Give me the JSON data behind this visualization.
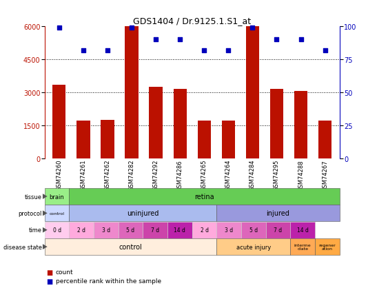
{
  "title": "GDS1404 / Dr.9125.1.S1_at",
  "samples": [
    "GSM74260",
    "GSM74261",
    "GSM74262",
    "GSM74282",
    "GSM74292",
    "GSM74286",
    "GSM74265",
    "GSM74264",
    "GSM74284",
    "GSM74295",
    "GSM74288",
    "GSM74267"
  ],
  "counts": [
    3350,
    1700,
    1750,
    6000,
    3250,
    3150,
    1700,
    1700,
    6000,
    3150,
    3050,
    1700
  ],
  "percentiles": [
    99,
    82,
    82,
    99,
    90,
    90,
    82,
    82,
    99,
    90,
    90,
    82
  ],
  "ylim_left": [
    0,
    6000
  ],
  "ylim_right": [
    0,
    100
  ],
  "yticks_left": [
    0,
    1500,
    3000,
    4500,
    6000
  ],
  "yticks_right": [
    0,
    25,
    50,
    75,
    100
  ],
  "bar_color": "#bb1100",
  "dot_color": "#0000bb",
  "bar_width": 0.55,
  "tissue_brain_color": "#99ee88",
  "tissue_retina_color": "#66cc55",
  "protocol_control_color": "#ccd9ff",
  "protocol_uninjured_color": "#aabbee",
  "protocol_injured_color": "#9999dd",
  "time_colors_all": [
    "#ffccee",
    "#ffaadd",
    "#ee88cc",
    "#dd66bb",
    "#cc44aa",
    "#bb22aa",
    "#ffaadd",
    "#ee88cc",
    "#dd66bb",
    "#cc44aa",
    "#bb22aa"
  ],
  "disease_control_color": "#ffeedd",
  "disease_acute_color": "#ffcc88",
  "disease_interme_color": "#ffaa55",
  "disease_regen_color": "#ffaa44",
  "times": [
    "0 d",
    "2 d",
    "3 d",
    "5 d",
    "7 d",
    "14 d",
    "2 d",
    "3 d",
    "5 d",
    "7 d",
    "14 d"
  ],
  "row_labels": [
    "tissue",
    "protocol",
    "time",
    "disease state"
  ],
  "title_fontsize": 9,
  "tick_fontsize": 6,
  "label_fontsize": 7
}
